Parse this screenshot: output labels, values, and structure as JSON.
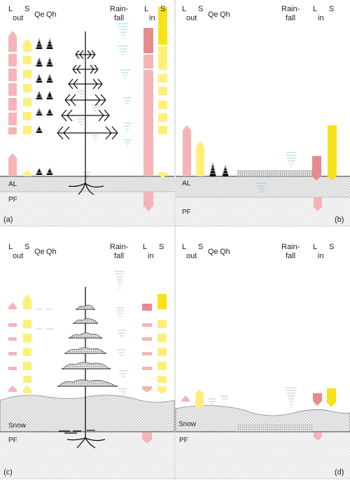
{
  "colors": {
    "longwave": "#f3b5b8",
    "longwave_dark": "#e07b80",
    "shortwave": "#fdf07a",
    "shortwave_dark": "#f7e21a",
    "latent": "#c9bad6",
    "sensible": "#c9bad6",
    "rain": "#9fd6ee",
    "rain_winter": "#c9c9c9",
    "ground": "#f1f1f1",
    "snow": "#e8e8e8",
    "tree": "#111111"
  },
  "panels": [
    {
      "id": "a",
      "label": "(a)",
      "headers": {
        "l_top": "L",
        "s_top": "S",
        "out": "out",
        "qe": "Qe",
        "qh": "Qh",
        "rain1": "Rain-",
        "rain2": "fall",
        "l_in": "L",
        "s_in": "S",
        "in": "in"
      },
      "layers": [
        "AL",
        "PF"
      ]
    },
    {
      "id": "b",
      "label": "(b)",
      "headers": {
        "l_top": "L",
        "s_top": "S",
        "out": "out",
        "qe": "Qe",
        "qh": "Qh",
        "rain1": "Rain-",
        "rain2": "fall",
        "l_in": "L",
        "s_in": "S",
        "in": "in"
      },
      "layers": [
        "AL",
        "PF"
      ]
    },
    {
      "id": "c",
      "label": "(c)",
      "headers": {
        "l_top": "L",
        "s_top": "S",
        "out": "out",
        "qe": "Qe",
        "qh": "Qh",
        "rain1": "Rain-",
        "rain2": "fall",
        "l_in": "L",
        "s_in": "S",
        "in": "in"
      },
      "layers": [
        "Snow",
        "PF"
      ]
    },
    {
      "id": "d",
      "label": "(d)",
      "headers": {
        "l_top": "L",
        "s_top": "S",
        "out": "out",
        "qe": "Qe",
        "qh": "Qh",
        "rain1": "Rain-",
        "rain2": "fall",
        "l_in": "L",
        "s_in": "S",
        "in": "in"
      },
      "layers": [
        "Snow",
        "PF"
      ]
    }
  ]
}
